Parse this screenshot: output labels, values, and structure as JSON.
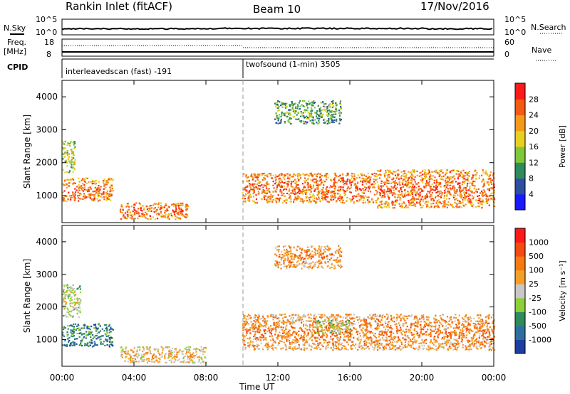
{
  "header": {
    "station": "Rankin Inlet (fitACF)",
    "beam": "Beam 10",
    "date": "17/Nov/2016"
  },
  "strip": {
    "nsky_label": "N.Sky",
    "nsky_ticks": [
      "10^5",
      "10^0"
    ],
    "nsearch_label": "N.Search",
    "nsearch_ticks": [
      "10^5",
      "10^0"
    ],
    "freq_label": "Freq.",
    "freq_unit": "[MHz]",
    "freq_ticks": [
      "18",
      "8"
    ],
    "nave_label": "Nave",
    "nave_ticks": [
      "60",
      "0"
    ],
    "cpid_label": "CPID",
    "modes": [
      {
        "name": "interleavedscan (fast) -191"
      },
      {
        "name": "twofsound (1-min) 3505"
      }
    ]
  },
  "chart_data": [
    {
      "type": "heatmap",
      "panel": "power",
      "ylabel": "Slant Range [km]",
      "xlabel": "",
      "x_ticks": [
        "00:00",
        "04:00",
        "08:00",
        "12:00",
        "16:00",
        "20:00",
        "00:00"
      ],
      "y_ticks": [
        "1000",
        "2000",
        "3000",
        "4000"
      ],
      "xlim_hours": [
        0,
        24
      ],
      "ylim_km": [
        180,
        4500
      ],
      "colorbar": {
        "label": "Power [dB]",
        "ticks": [
          "28",
          "24",
          "20",
          "16",
          "12",
          "8",
          "4"
        ],
        "colors": [
          "#1a1aff",
          "#2c4fa0",
          "#2f8a5c",
          "#7ec83a",
          "#e8d020",
          "#f39a1a",
          "#f55a12",
          "#ff1a1a"
        ]
      },
      "echo_regions": [
        {
          "t_start": 0.0,
          "t_end": 2.8,
          "range_lo_km": 850,
          "range_hi_km": 1550,
          "level": 6
        },
        {
          "t_start": 0.0,
          "t_end": 0.7,
          "range_lo_km": 1700,
          "range_hi_km": 2700,
          "level": 4
        },
        {
          "t_start": 3.2,
          "t_end": 7.0,
          "range_lo_km": 300,
          "range_hi_km": 800,
          "level": 6
        },
        {
          "t_start": 10.0,
          "t_end": 17.5,
          "range_lo_km": 800,
          "range_hi_km": 1700,
          "level": 6
        },
        {
          "t_start": 17.5,
          "t_end": 24.0,
          "range_lo_km": 650,
          "range_hi_km": 1800,
          "level": 6
        },
        {
          "t_start": 11.8,
          "t_end": 15.5,
          "range_lo_km": 3200,
          "range_hi_km": 3900,
          "level": 3
        }
      ]
    },
    {
      "type": "heatmap",
      "panel": "velocity",
      "ylabel": "Slant Range [km]",
      "xlabel": "Time UT",
      "x_ticks": [
        "00:00",
        "04:00",
        "08:00",
        "12:00",
        "16:00",
        "20:00",
        "00:00"
      ],
      "y_ticks": [
        "1000",
        "2000",
        "3000",
        "4000"
      ],
      "xlim_hours": [
        0,
        24
      ],
      "ylim_km": [
        180,
        4500
      ],
      "colorbar": {
        "label": "Velocity [m s⁻¹]",
        "ticks": [
          "1000",
          "500",
          "100",
          "25",
          "-25",
          "-100",
          "-500",
          "-1000"
        ],
        "colors": [
          "#1f3fa0",
          "#2e6fa0",
          "#2f8a5c",
          "#8ccf3a",
          "#c8c8c8",
          "#f4a028",
          "#f57a10",
          "#f54a12",
          "#ff1a1a"
        ]
      },
      "echo_regions": [
        {
          "t_start": 0.0,
          "t_end": 2.8,
          "range_lo_km": 800,
          "range_hi_km": 1500,
          "level": 2
        },
        {
          "t_start": 0.0,
          "t_end": 1.0,
          "range_lo_km": 1700,
          "range_hi_km": 2700,
          "level": 4
        },
        {
          "t_start": 3.2,
          "t_end": 8.0,
          "range_lo_km": 300,
          "range_hi_km": 800,
          "level": 5
        },
        {
          "t_start": 10.0,
          "t_end": 24.0,
          "range_lo_km": 700,
          "range_hi_km": 1800,
          "level": 6
        },
        {
          "t_start": 14.0,
          "t_end": 16.0,
          "range_lo_km": 1200,
          "range_hi_km": 1600,
          "level": 4
        },
        {
          "t_start": 11.8,
          "t_end": 15.5,
          "range_lo_km": 3200,
          "range_hi_km": 3900,
          "level": 6
        }
      ]
    }
  ]
}
